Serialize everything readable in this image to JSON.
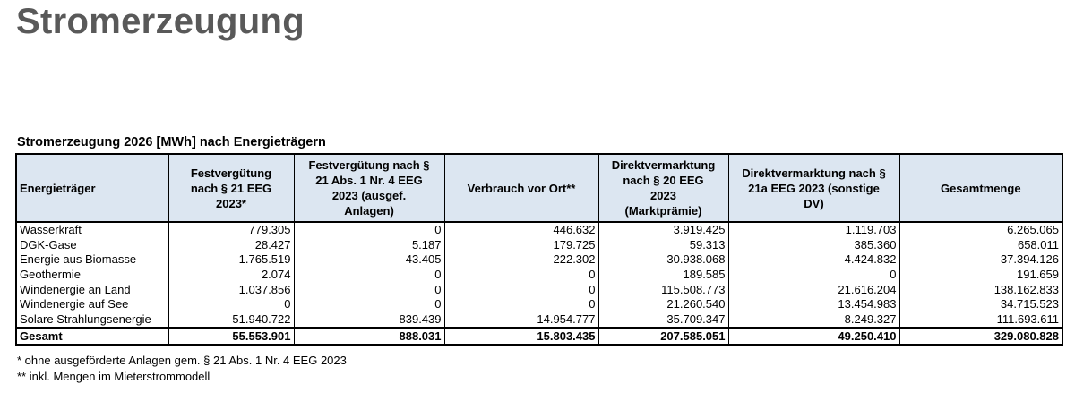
{
  "header": {
    "title": "Stromerzeugung"
  },
  "table": {
    "caption": "Stromerzeugung 2026 [MWh] nach Energieträgern",
    "columns": [
      "Energieträger",
      "Festvergütung nach § 21 EEG 2023*",
      "Festvergütung nach § 21 Abs. 1 Nr. 4 EEG 2023 (ausgef. Anlagen)",
      "Verbrauch vor Ort**",
      "Direktvermarktung nach § 20 EEG 2023 (Marktprämie)",
      "Direktvermarktung nach § 21a EEG 2023 (sonstige DV)",
      "Gesamtmenge"
    ],
    "rows": [
      [
        "Wasserkraft",
        "779.305",
        "0",
        "446.632",
        "3.919.425",
        "1.119.703",
        "6.265.065"
      ],
      [
        "DGK-Gase",
        "28.427",
        "5.187",
        "179.725",
        "59.313",
        "385.360",
        "658.011"
      ],
      [
        "Energie aus Biomasse",
        "1.765.519",
        "43.405",
        "222.302",
        "30.938.068",
        "4.424.832",
        "37.394.126"
      ],
      [
        "Geothermie",
        "2.074",
        "0",
        "0",
        "189.585",
        "0",
        "191.659"
      ],
      [
        "Windenergie an Land",
        "1.037.856",
        "0",
        "0",
        "115.508.773",
        "21.616.204",
        "138.162.833"
      ],
      [
        "Windenergie auf See",
        "0",
        "0",
        "0",
        "21.260.540",
        "13.454.983",
        "34.715.523"
      ],
      [
        "Solare Strahlungsenergie",
        "51.940.722",
        "839.439",
        "14.954.777",
        "35.709.347",
        "8.249.327",
        "111.693.611"
      ]
    ],
    "total": [
      "Gesamt",
      "55.553.901",
      "888.031",
      "15.803.435",
      "207.585.051",
      "49.250.410",
      "329.080.828"
    ]
  },
  "footnotes": [
    "* ohne ausgeförderte Anlagen gem. § 21 Abs. 1 Nr. 4 EEG 2023",
    "** inkl. Mengen im Mieterstrommodell"
  ]
}
